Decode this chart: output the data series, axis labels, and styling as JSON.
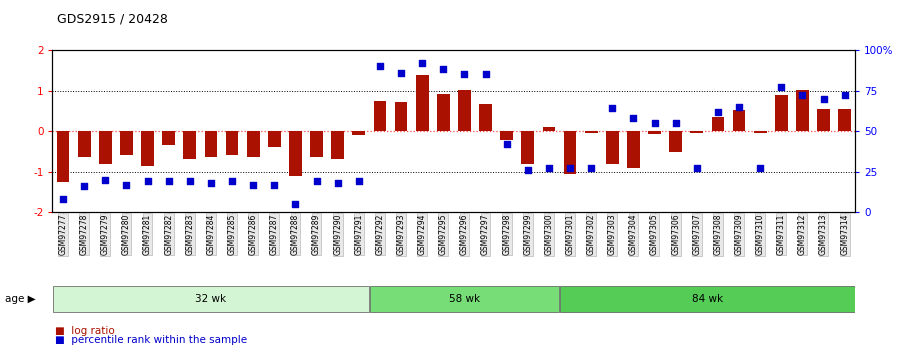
{
  "title": "GDS2915 / 20428",
  "samples": [
    "GSM97277",
    "GSM97278",
    "GSM97279",
    "GSM97280",
    "GSM97281",
    "GSM97282",
    "GSM97283",
    "GSM97284",
    "GSM97285",
    "GSM97286",
    "GSM97287",
    "GSM97288",
    "GSM97289",
    "GSM97290",
    "GSM97291",
    "GSM97292",
    "GSM97293",
    "GSM97294",
    "GSM97295",
    "GSM97296",
    "GSM97297",
    "GSM97298",
    "GSM97299",
    "GSM97300",
    "GSM97301",
    "GSM97302",
    "GSM97303",
    "GSM97304",
    "GSM97305",
    "GSM97306",
    "GSM97307",
    "GSM97308",
    "GSM97309",
    "GSM97310",
    "GSM97311",
    "GSM97312",
    "GSM97313",
    "GSM97314"
  ],
  "log_ratio": [
    -1.25,
    -0.65,
    -0.8,
    -0.6,
    -0.85,
    -0.35,
    -0.7,
    -0.65,
    -0.6,
    -0.65,
    -0.4,
    -1.1,
    -0.65,
    -0.7,
    -0.1,
    0.75,
    0.72,
    1.38,
    0.92,
    1.02,
    0.68,
    -0.22,
    -0.82,
    0.1,
    -1.05,
    -0.05,
    -0.82,
    -0.92,
    -0.08,
    -0.52,
    -0.05,
    0.35,
    0.52,
    -0.05,
    0.9,
    1.02,
    0.55,
    0.55
  ],
  "percentile": [
    8,
    16,
    20,
    17,
    19,
    19,
    19,
    18,
    19,
    17,
    17,
    5,
    19,
    18,
    19,
    90,
    86,
    92,
    88,
    85,
    85,
    42,
    26,
    27,
    27,
    27,
    64,
    58,
    55,
    55,
    27,
    62,
    65,
    27,
    77,
    72,
    70,
    72
  ],
  "groups": [
    {
      "label": "32 wk",
      "start": 0,
      "end": 15,
      "color": "#d4f5d4"
    },
    {
      "label": "58 wk",
      "start": 15,
      "end": 24,
      "color": "#77dd77"
    },
    {
      "label": "84 wk",
      "start": 24,
      "end": 38,
      "color": "#55cc55"
    }
  ],
  "bar_color": "#aa1100",
  "scatter_color": "#0000cc",
  "ylim_left": [
    -2,
    2
  ],
  "ylim_right": [
    0,
    100
  ],
  "yticks_left": [
    -2,
    -1,
    0,
    1,
    2
  ],
  "yticks_right": [
    0,
    25,
    50,
    75,
    100
  ],
  "ytick_labels_right": [
    "0",
    "25",
    "50",
    "75",
    "100%"
  ],
  "hlines_dotted": [
    -1,
    1
  ],
  "hline_zero_color": "#ff4444"
}
